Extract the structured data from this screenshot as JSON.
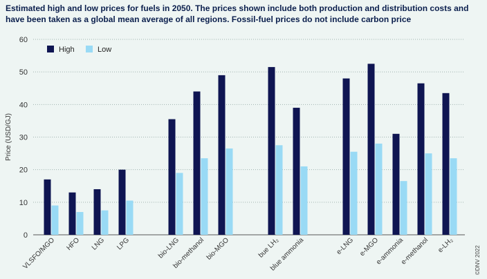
{
  "chart_data": {
    "type": "bar",
    "title": "Estimated high and low prices for fuels in 2050. The prices shown include both production and distribution costs and have been taken as a global mean average of all regions. Fossil-fuel prices do not include carbon price",
    "xlabel": "",
    "ylabel": "Price (USD/GJ)",
    "ylim": [
      0,
      60
    ],
    "yticks": [
      0,
      10,
      20,
      30,
      40,
      50,
      60
    ],
    "grid": true,
    "legend_position": "top-left",
    "copyright": "©DNV 2022",
    "categories": [
      "VLSFO/MGO",
      "HFO",
      "LNG",
      "LPG",
      "bio-LNG",
      "bio-methanol",
      "bio-MGO",
      "bue LH₂",
      "blue ammonia",
      "e-LNG",
      "e-MGO",
      "e-ammonia",
      "e-methanol",
      "e-LH₂"
    ],
    "groups": [
      [
        0,
        1,
        2,
        3
      ],
      [
        4,
        5,
        6
      ],
      [
        7,
        8
      ],
      [
        9,
        10,
        11,
        12,
        13
      ]
    ],
    "series": [
      {
        "name": "High",
        "color": "#0f1552",
        "values": [
          17,
          13,
          14,
          20,
          35.5,
          44,
          49,
          51.5,
          39,
          48,
          52.5,
          31,
          46.5,
          43.5
        ]
      },
      {
        "name": "Low",
        "color": "#99daf5",
        "values": [
          9,
          7,
          7.5,
          10.5,
          19,
          23.5,
          26.5,
          27.5,
          21,
          25.5,
          28,
          16.5,
          25,
          23.5
        ]
      }
    ]
  }
}
